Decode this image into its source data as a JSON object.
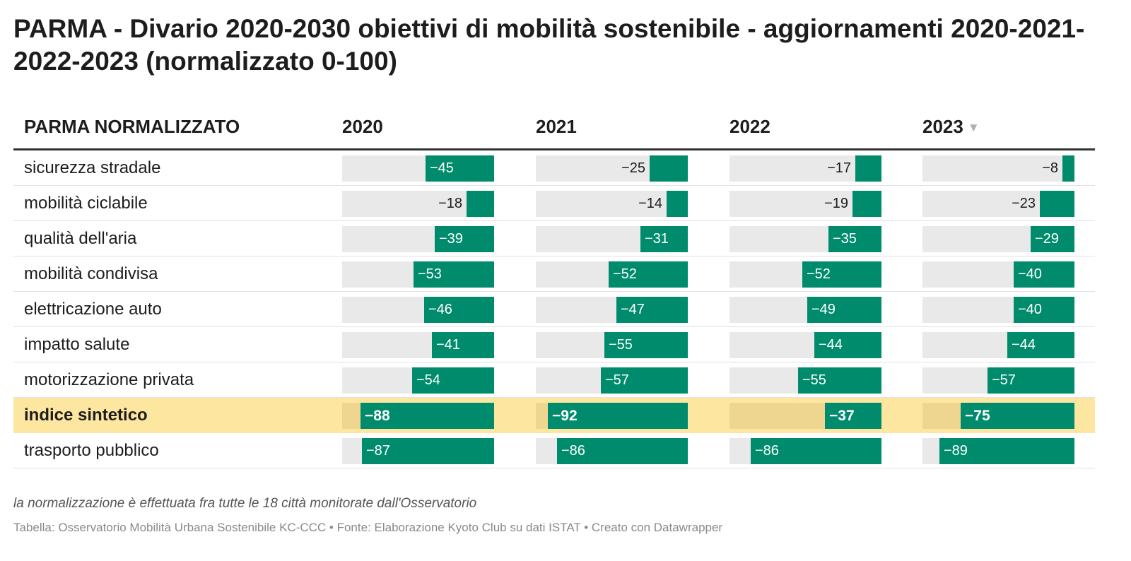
{
  "title": "PARMA - Divario 2020-2030 obiettivi di mobilità sostenibile - aggiornamenti 2020-2021-2022-2023 (normalizzato 0-100)",
  "header": {
    "label": "PARMA NORMALIZZATO",
    "years": [
      "2020",
      "2021",
      "2022",
      "2023"
    ],
    "sort_icon": "sort-descending-triangle-icon",
    "sort_glyph": "▼"
  },
  "colors": {
    "bar": "#008c6c",
    "track": "#e9e9e9",
    "highlight": "#fde7a0"
  },
  "chart_data": {
    "type": "table",
    "columns": [
      "2020",
      "2021",
      "2022",
      "2023"
    ],
    "sorted_by": "2023",
    "value_range": [
      -100,
      0
    ],
    "rows": [
      {
        "label": "sicurezza stradale",
        "values": [
          -45,
          -25,
          -17,
          -8
        ],
        "display": [
          "−45",
          "−25",
          "−17",
          "−8"
        ]
      },
      {
        "label": "mobilità ciclabile",
        "values": [
          -18,
          -14,
          -19,
          -23
        ],
        "display": [
          "−18",
          "−14",
          "−19",
          "−23"
        ]
      },
      {
        "label": "qualità dell'aria",
        "values": [
          -39,
          -31,
          -35,
          -29
        ],
        "display": [
          "−39",
          "−31",
          "−35",
          "−29"
        ]
      },
      {
        "label": "mobilità condivisa",
        "values": [
          -53,
          -52,
          -52,
          -40
        ],
        "display": [
          "−53",
          "−52",
          "−52",
          "−40"
        ]
      },
      {
        "label": "elettricazione auto",
        "values": [
          -46,
          -47,
          -49,
          -40
        ],
        "display": [
          "−46",
          "−47",
          "−49",
          "−40"
        ]
      },
      {
        "label": "impatto salute",
        "values": [
          -41,
          -55,
          -44,
          -44
        ],
        "display": [
          "−41",
          "−55",
          "−44",
          "−44"
        ]
      },
      {
        "label": "motorizzazione privata",
        "values": [
          -54,
          -57,
          -55,
          -57
        ],
        "display": [
          "−54",
          "−57",
          "−55",
          "−57"
        ]
      },
      {
        "label": "indice sintetico",
        "values": [
          -88,
          -92,
          -37,
          -75
        ],
        "display": [
          "−88",
          "−92",
          "−37",
          "−75"
        ],
        "highlight": true
      },
      {
        "label": "trasporto pubblico",
        "values": [
          -87,
          -86,
          -86,
          -89
        ],
        "display": [
          "−87",
          "−86",
          "−86",
          "−89"
        ]
      }
    ]
  },
  "footer": {
    "note": "la normalizzazione è effettuata fra tutte le 18 città monitorate dall'Osservatorio",
    "source": "Tabella: Osservatorio Mobilità Urbana Sostenibile KC-CCC • Fonte: Elaborazione Kyoto Club su dati ISTAT • Creato con Datawrapper"
  }
}
